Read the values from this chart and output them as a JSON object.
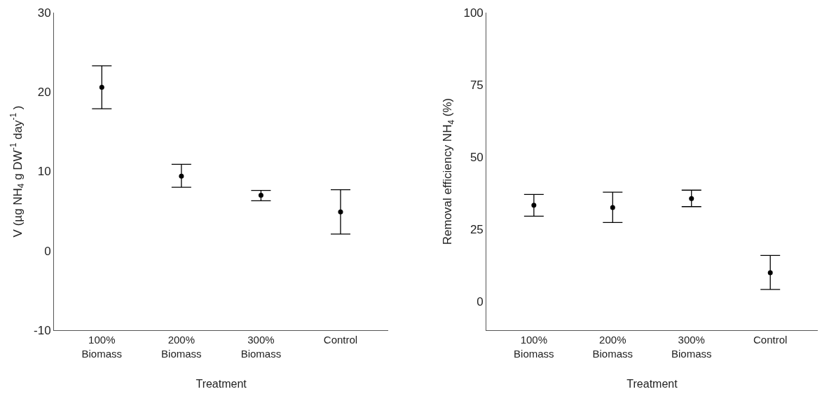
{
  "chart_data": [
    {
      "type": "scatter",
      "xlabel": "Treatment",
      "ylabel": "V (µg NH$_{4}$ g DW$^{-1}$ day$^{-1}$ )",
      "categories": [
        "100%\nBiomass",
        "200%\nBiomass",
        "300%\nBiomass",
        "Control"
      ],
      "series": [
        {
          "color": "#000000",
          "values": [
            20.6,
            9.4,
            7.0,
            4.9
          ],
          "errors": [
            [
              17.9,
              23.3
            ],
            [
              8.0,
              10.9
            ],
            [
              6.3,
              7.6
            ],
            [
              2.1,
              7.7
            ]
          ]
        }
      ],
      "ylim": [
        -10,
        30
      ],
      "yticks": [
        -10,
        0,
        10,
        20,
        30
      ],
      "marker": "circle"
    },
    {
      "type": "scatter",
      "xlabel": "Treatment",
      "ylabel": "Removal efficiency NH$_{4}$ (%)",
      "categories": [
        "100%\nBiomass",
        "200%\nBiomass",
        "300%\nBiomass",
        "Control"
      ],
      "series": [
        {
          "color": "#000000",
          "values": [
            33.3,
            32.5,
            35.6,
            9.9
          ],
          "errors": [
            [
              29.5,
              37.0
            ],
            [
              27.3,
              37.8
            ],
            [
              32.8,
              38.5
            ],
            [
              4.1,
              15.9
            ]
          ]
        }
      ],
      "ylim": [
        -10,
        100
      ],
      "yticks": [
        0,
        25,
        50,
        75,
        100
      ],
      "marker": "circle"
    }
  ]
}
